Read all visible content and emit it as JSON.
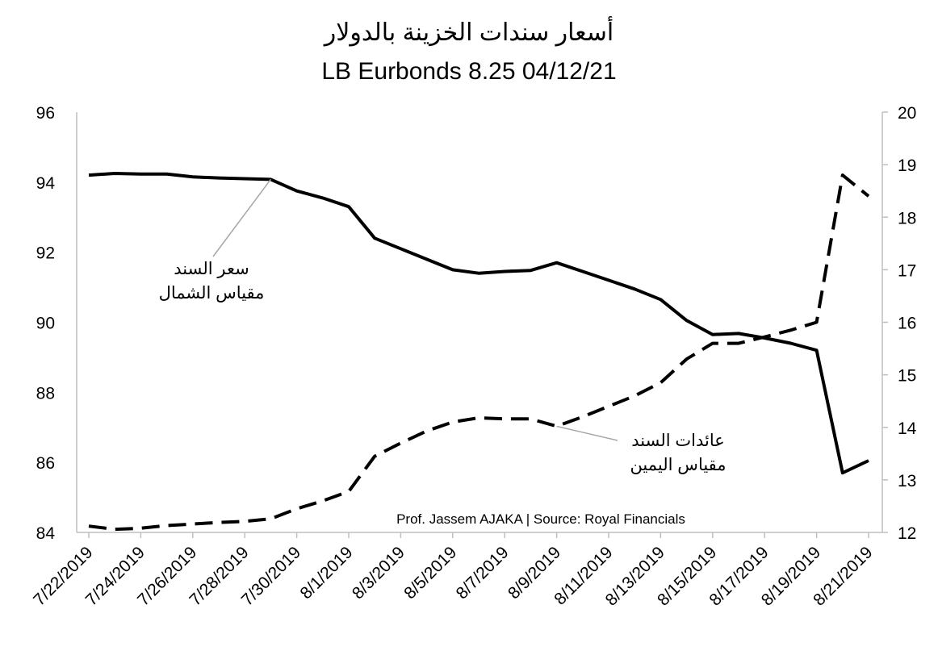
{
  "chart_data": {
    "type": "line",
    "title": "أسعار سندات الخزينة بالدولار",
    "subtitle": "LB Eurbonds 8.25 04/12/21",
    "source": "Prof. Jassem AJAKA | Source: Royal Financials",
    "y_left": {
      "min": 84,
      "max": 96,
      "ticks": [
        "84",
        "86",
        "88",
        "90",
        "92",
        "94",
        "96"
      ]
    },
    "y_right": {
      "min": 12,
      "max": 20,
      "ticks": [
        "12",
        "13",
        "14",
        "15",
        "16",
        "17",
        "18",
        "19",
        "20"
      ]
    },
    "x_tick_labels": [
      "7/22/2019",
      "7/24/2019",
      "7/26/2019",
      "7/28/2019",
      "7/30/2019",
      "8/1/2019",
      "8/3/2019",
      "8/5/2019",
      "8/7/2019",
      "8/9/2019",
      "8/11/2019",
      "8/13/2019",
      "8/15/2019",
      "8/17/2019",
      "8/19/2019",
      "8/21/2019"
    ],
    "series": [
      {
        "name": "سعر السند",
        "axis": "left",
        "style": "solid",
        "color": "#000000",
        "points": [
          [
            "7/22/2019",
            94.2
          ],
          [
            "7/23/2019",
            94.25
          ],
          [
            "7/24/2019",
            94.23
          ],
          [
            "7/25/2019",
            94.23
          ],
          [
            "7/26/2019",
            94.15
          ],
          [
            "7/27/2019",
            94.12
          ],
          [
            "7/28/2019",
            94.1
          ],
          [
            "7/29/2019",
            94.08
          ],
          [
            "7/30/2019",
            93.75
          ],
          [
            "7/31/2019",
            93.55
          ],
          [
            "8/1/2019",
            93.3
          ],
          [
            "8/2/2019",
            92.4
          ],
          [
            "8/3/2019",
            92.1
          ],
          [
            "8/4/2019",
            91.8
          ],
          [
            "8/5/2019",
            91.5
          ],
          [
            "8/6/2019",
            91.4
          ],
          [
            "8/7/2019",
            91.45
          ],
          [
            "8/8/2019",
            91.48
          ],
          [
            "8/9/2019",
            91.7
          ],
          [
            "8/10/2019",
            91.45
          ],
          [
            "8/11/2019",
            91.2
          ],
          [
            "8/12/2019",
            90.95
          ],
          [
            "8/13/2019",
            90.65
          ],
          [
            "8/14/2019",
            90.05
          ],
          [
            "8/15/2019",
            89.65
          ],
          [
            "8/16/2019",
            89.68
          ],
          [
            "8/17/2019",
            89.55
          ],
          [
            "8/18/2019",
            89.4
          ],
          [
            "8/19/2019",
            89.2
          ],
          [
            "8/20/2019",
            85.7
          ],
          [
            "8/21/2019",
            86.05
          ]
        ]
      },
      {
        "name": "عائدات السند",
        "axis": "right",
        "style": "dashed",
        "color": "#000000",
        "points": [
          [
            "7/22/2019",
            12.12
          ],
          [
            "7/23/2019",
            12.06
          ],
          [
            "7/24/2019",
            12.08
          ],
          [
            "7/25/2019",
            12.13
          ],
          [
            "7/26/2019",
            12.16
          ],
          [
            "7/27/2019",
            12.19
          ],
          [
            "7/28/2019",
            12.21
          ],
          [
            "7/29/2019",
            12.26
          ],
          [
            "7/30/2019",
            12.45
          ],
          [
            "7/31/2019",
            12.6
          ],
          [
            "8/1/2019",
            12.78
          ],
          [
            "8/2/2019",
            13.45
          ],
          [
            "8/3/2019",
            13.7
          ],
          [
            "8/4/2019",
            13.93
          ],
          [
            "8/5/2019",
            14.1
          ],
          [
            "8/6/2019",
            14.18
          ],
          [
            "8/7/2019",
            14.16
          ],
          [
            "8/8/2019",
            14.16
          ],
          [
            "8/9/2019",
            14.02
          ],
          [
            "8/10/2019",
            14.2
          ],
          [
            "8/11/2019",
            14.4
          ],
          [
            "8/12/2019",
            14.6
          ],
          [
            "8/13/2019",
            14.85
          ],
          [
            "8/14/2019",
            15.3
          ],
          [
            "8/15/2019",
            15.6
          ],
          [
            "8/16/2019",
            15.6
          ],
          [
            "8/17/2019",
            15.72
          ],
          [
            "8/18/2019",
            15.85
          ],
          [
            "8/19/2019",
            16.0
          ],
          [
            "8/20/2019",
            18.8
          ],
          [
            "8/21/2019",
            18.4
          ]
        ]
      }
    ],
    "annotations": [
      {
        "lines": [
          "سعر السند",
          "مقياس الشمال"
        ],
        "target_series": "سعر السند",
        "target_x": "7/29/2019"
      },
      {
        "lines": [
          "عائدات السند",
          "مقياس اليمين"
        ],
        "target_series": "عائدات السند",
        "target_x": "8/9/2019"
      }
    ],
    "grid": false,
    "legend": "none"
  }
}
